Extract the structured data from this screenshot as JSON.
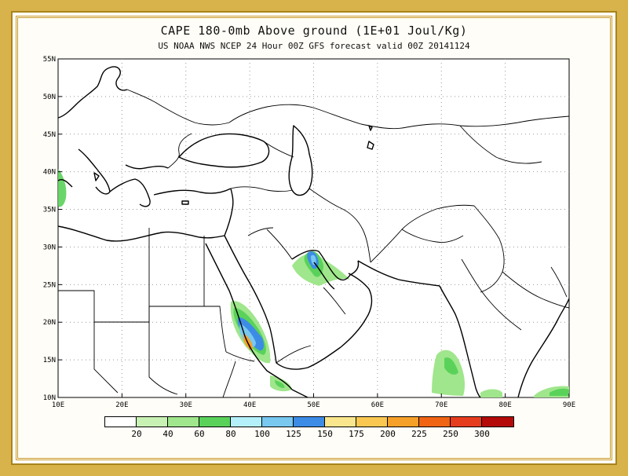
{
  "title": "CAPE 180-0mb Above ground (1E+01 Joul/Kg)",
  "subtitle": "US NOAA NWS NCEP 24 Hour 00Z GFS forecast valid 00Z 20141124",
  "map": {
    "lon_ticks": [
      "10E",
      "20E",
      "30E",
      "40E",
      "50E",
      "60E",
      "70E",
      "80E",
      "90E"
    ],
    "lat_ticks": [
      "55N",
      "50N",
      "45N",
      "40N",
      "35N",
      "30N",
      "25N",
      "20N",
      "15N",
      "10N"
    ],
    "extent": {
      "lon_min": 10,
      "lon_max": 90,
      "lat_min": 10,
      "lat_max": 55
    }
  },
  "legend": {
    "colors": [
      "#ffffff",
      "#c8f2b4",
      "#a0e68c",
      "#5ad25a",
      "#b4f0fa",
      "#78c8f0",
      "#3c8ce6",
      "#fae68c",
      "#fac850",
      "#f5a028",
      "#f06414",
      "#e63c1e",
      "#b40a0a"
    ],
    "labels": [
      "20",
      "40",
      "60",
      "80",
      "100",
      "125",
      "150",
      "175",
      "200",
      "225",
      "250",
      "300"
    ]
  }
}
